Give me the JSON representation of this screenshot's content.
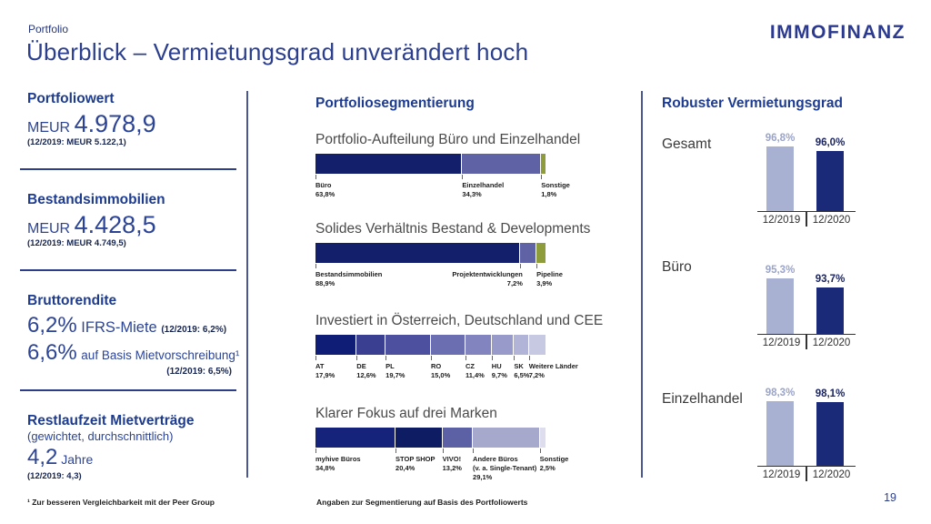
{
  "meta": {
    "eyebrow": "Portfolio",
    "title": "Überblick – Vermietungsgrad unverändert hoch",
    "logo": "IMMOFINANZ",
    "page_number": "19"
  },
  "footnotes": {
    "left": "¹ Zur besseren Vergleichbarkeit mit der Peer Group",
    "center": "Angaben zur Segmentierung auf Basis des Portfoliowerts"
  },
  "left_panel": {
    "portfoliowert": {
      "heading": "Portfoliowert",
      "unit": "MEUR",
      "value": "4.978,9",
      "prior": "(12/2019: MEUR 5.122,1)"
    },
    "bestandsimmobilien": {
      "heading": "Bestandsimmobilien",
      "unit": "MEUR",
      "value": "4.428,5",
      "prior": "(12/2019: MEUR 4.749,5)"
    },
    "bruttorendite": {
      "heading": "Bruttorendite",
      "line1_value": "6,2%",
      "line1_label": "IFRS-Miete",
      "line1_prior": "(12/2019: 6,2%)",
      "line2_value": "6,6%",
      "line2_label": "auf Basis Mietvorschreibung¹",
      "line2_prior": "(12/2019: 6,5%)"
    },
    "restlaufzeit": {
      "heading": "Restlaufzeit Mietverträge",
      "subheading": "(gewichtet, durchschnittlich)",
      "value": "4,2",
      "unit": "Jahre",
      "prior": "(12/2019: 4,3)"
    }
  },
  "segment_panel": {
    "heading": "Portfoliosegmentierung"
  },
  "vacancy_panel": {
    "heading": "Robuster Vermietungsgrad"
  },
  "colors": {
    "navy": "#131f6b",
    "purple": "#5f63a5",
    "olive": "#8e9c3c",
    "light_bar": "#a9b1d2",
    "dark_bar": "#1b2a78",
    "accent_text": "#1d3b8f"
  },
  "chart_data": [
    {
      "type": "bar",
      "variant": "stacked-horizontal",
      "title": "Portfolio-Aufteilung Büro und Einzelhandel",
      "unit": "%",
      "segments": [
        {
          "label": "Büro",
          "value": 63.8,
          "display": "63,8%",
          "color": "#131f6b"
        },
        {
          "label": "Einzelhandel",
          "value": 34.3,
          "display": "34,3%",
          "color": "#5f63a5"
        },
        {
          "label": "Sonstige",
          "value": 1.8,
          "display": "1,8%",
          "color": "#8e9c3c"
        }
      ]
    },
    {
      "type": "bar",
      "variant": "stacked-horizontal",
      "title": "Solides Verhältnis Bestand & Developments",
      "unit": "%",
      "segments": [
        {
          "label": "Bestandsimmobilien",
          "value": 88.9,
          "display": "88,9%",
          "color": "#131f6b"
        },
        {
          "label": "Projektentwicklungen",
          "value": 7.2,
          "display": "7,2%",
          "color": "#5f63a5",
          "align": "right"
        },
        {
          "label": "Pipeline",
          "value": 3.9,
          "display": "3,9%",
          "color": "#8e9c3c"
        }
      ]
    },
    {
      "type": "bar",
      "variant": "stacked-horizontal",
      "title": "Investiert in Österreich, Deutschland und CEE",
      "unit": "%",
      "segments": [
        {
          "label": "AT",
          "value": 17.9,
          "display": "17,9%",
          "color": "#0f1d76"
        },
        {
          "label": "DE",
          "value": 12.6,
          "display": "12,6%",
          "color": "#3b3f92"
        },
        {
          "label": "PL",
          "value": 19.7,
          "display": "19,7%",
          "color": "#4c509e"
        },
        {
          "label": "RO",
          "value": 15.0,
          "display": "15,0%",
          "color": "#6b6eb1"
        },
        {
          "label": "CZ",
          "value": 11.4,
          "display": "11,4%",
          "color": "#8184be"
        },
        {
          "label": "HU",
          "value": 9.7,
          "display": "9,7%",
          "color": "#989bc9"
        },
        {
          "label": "SK",
          "value": 6.5,
          "display": "6,5%",
          "color": "#b2b4d7"
        },
        {
          "label": "Weitere Länder",
          "value": 7.2,
          "display": "7,2%",
          "color": "#c7c8e1"
        }
      ]
    },
    {
      "type": "bar",
      "variant": "stacked-horizontal",
      "title": "Klarer Fokus auf drei Marken",
      "unit": "%",
      "segments": [
        {
          "label": "myhive Büros",
          "value": 34.8,
          "display": "34,8%",
          "color": "#15247a"
        },
        {
          "label": "STOP SHOP",
          "value": 20.4,
          "display": "20,4%",
          "color": "#0e1c64"
        },
        {
          "label": "VIVO!",
          "value": 13.2,
          "display": "13,2%",
          "color": "#5c60a4"
        },
        {
          "label": "Andere Büros",
          "label2": "(v. a. Single-Tenant)",
          "value": 29.1,
          "display": "29,1%",
          "color": "#a7a9cc"
        },
        {
          "label": "Sonstige",
          "value": 2.5,
          "display": "2,5%",
          "color": "#dddded"
        }
      ]
    },
    {
      "type": "bar",
      "variant": "grouped-vertical",
      "title": "Robuster Vermietungsgrad",
      "unit": "%",
      "categories": [
        "12/2019",
        "12/2020"
      ],
      "series_colors": [
        "#a9b1d2",
        "#1b2a78"
      ],
      "value_label_colors": [
        "#9aa4c9",
        "#19235f"
      ],
      "groups": [
        {
          "label": "Gesamt",
          "values": [
            96.8,
            96.0
          ],
          "displays": [
            "96,8%",
            "96,0%"
          ],
          "ylim": [
            86,
            97.5
          ]
        },
        {
          "label": "Büro",
          "values": [
            95.3,
            93.7
          ],
          "displays": [
            "95,3%",
            "93,7%"
          ],
          "ylim": [
            86,
            97.5
          ]
        },
        {
          "label": "Einzelhandel",
          "values": [
            98.3,
            98.1
          ],
          "displays": [
            "98,3%",
            "98,1%"
          ],
          "ylim": [
            88,
            99
          ]
        }
      ]
    }
  ]
}
